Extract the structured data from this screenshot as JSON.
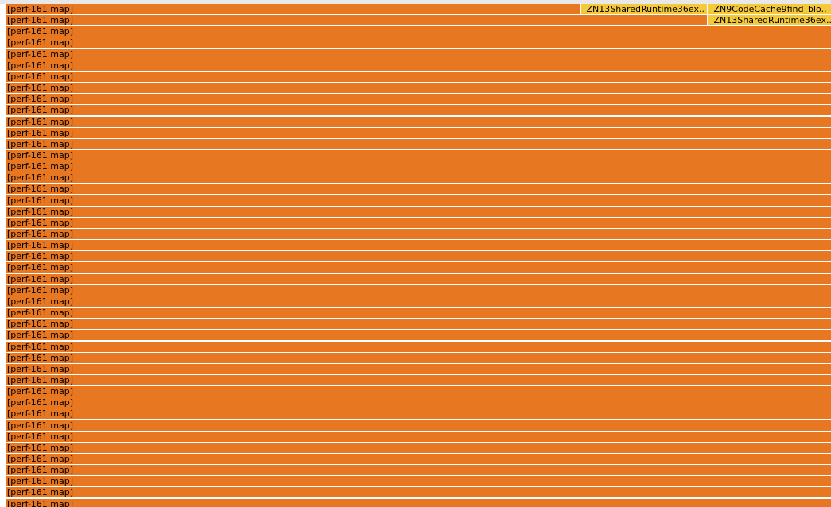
{
  "flamegraph": {
    "colors": {
      "orange": "#e87722",
      "yellow": "#f4c93a",
      "background": "#ffffff",
      "top_band": "#e8e8e8"
    },
    "top_rows": [
      {
        "frames": [
          {
            "label": "[perf-161.map]",
            "color": "orange"
          },
          {
            "label": "_ZN13SharedRuntime36ex..",
            "color": "yellow"
          },
          {
            "label": "_ZN9CodeCache9find_blo..",
            "color": "yellow"
          }
        ]
      },
      {
        "frames": [
          {
            "label": "[perf-161.map]",
            "color": "orange"
          },
          {
            "label": "_ZN13SharedRuntime36ex..",
            "color": "yellow"
          }
        ]
      }
    ],
    "stack_frame_label": "[perf-161.map]",
    "stack_frame_count": 43,
    "stack_frame_color": "orange"
  }
}
